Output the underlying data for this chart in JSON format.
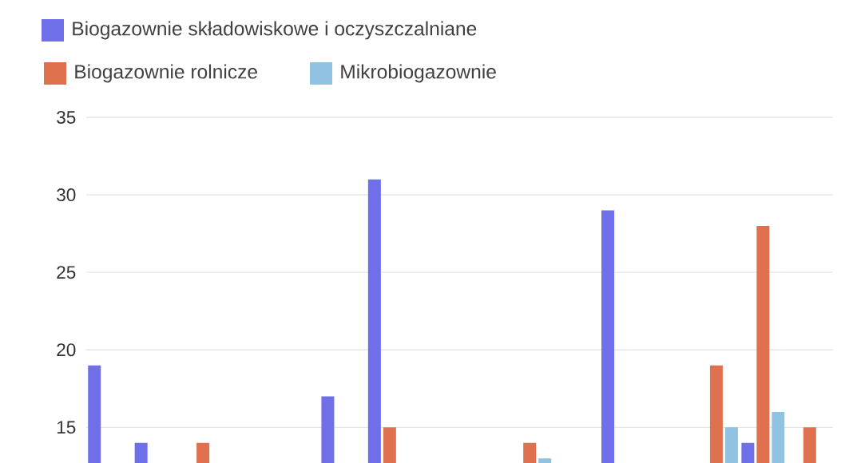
{
  "chart_data": {
    "type": "bar",
    "categories": [
      null,
      null,
      null,
      null,
      null,
      null,
      null,
      null,
      null,
      null,
      null,
      null,
      null,
      null,
      null,
      null
    ],
    "series": [
      {
        "name": "Biogazownie składowiskowe i oczyszczalniane",
        "color": "#6f6fe9",
        "values": [
          19,
          14,
          null,
          null,
          null,
          17,
          31,
          null,
          null,
          null,
          null,
          29,
          null,
          null,
          14,
          null
        ]
      },
      {
        "name": "Biogazownie rolnicze",
        "color": "#e0714e",
        "values": [
          null,
          null,
          14,
          null,
          null,
          null,
          15,
          null,
          null,
          14,
          null,
          null,
          null,
          19,
          28,
          15
        ]
      },
      {
        "name": "Mikrobiogazownie",
        "color": "#90c3e2",
        "values": [
          null,
          null,
          null,
          null,
          null,
          null,
          null,
          null,
          null,
          13,
          null,
          null,
          null,
          15,
          16,
          null
        ]
      }
    ],
    "ylim": [
      12.7,
      35
    ],
    "yticks": [
      15,
      20,
      25,
      30,
      35
    ],
    "grid": "y",
    "legend": "top left",
    "tick_labels": "y"
  }
}
